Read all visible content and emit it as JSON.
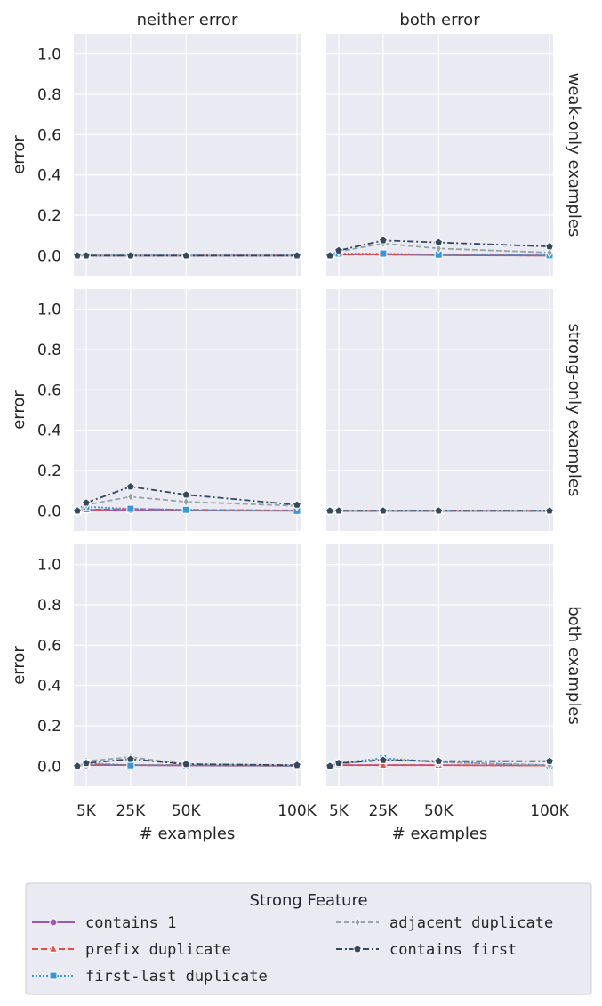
{
  "chart_data": {
    "type": "line",
    "row_titles": [
      "weak-only examples",
      "strong-only examples",
      "both examples"
    ],
    "col_titles": [
      "neither error",
      "both error"
    ],
    "xlabel": "# examples",
    "ylabel": "error",
    "x": [
      1000,
      5000,
      25000,
      50000,
      100000
    ],
    "x_ticks": [
      5000,
      25000,
      50000,
      100000
    ],
    "x_tick_labels": [
      "5K",
      "25K",
      "50K",
      "100K"
    ],
    "y_ticks": [
      0.0,
      0.2,
      0.4,
      0.6,
      0.8,
      1.0
    ],
    "y_tick_labels": [
      "0.0",
      "0.2",
      "0.4",
      "0.6",
      "0.8",
      "1.0"
    ],
    "ylim": [
      -0.1,
      1.1
    ],
    "grid": true,
    "legend": {
      "title": "Strong Feature",
      "placement": "bottom",
      "entries": [
        "contains 1",
        "prefix duplicate",
        "first-last duplicate",
        "adjacent duplicate",
        "contains first"
      ]
    },
    "series_styles": [
      {
        "name": "contains 1",
        "color": "#9b59b6",
        "dash": "",
        "marker": "circle"
      },
      {
        "name": "prefix duplicate",
        "color": "#e74c3c",
        "dash": "7,3",
        "marker": "triangle"
      },
      {
        "name": "first-last duplicate",
        "color": "#3498db",
        "dash": "2,2",
        "marker": "square"
      },
      {
        "name": "adjacent duplicate",
        "color": "#95a5a6",
        "dash": "6,3",
        "marker": "diamond"
      },
      {
        "name": "contains first",
        "color": "#34495e",
        "dash": "7,3,2,3",
        "marker": "pentagon"
      }
    ],
    "panels": [
      {
        "row": 0,
        "col": 0,
        "series": [
          {
            "name": "contains 1",
            "values": [
              0,
              0,
              0,
              0,
              0
            ]
          },
          {
            "name": "prefix duplicate",
            "values": [
              0,
              0,
              0,
              0,
              0
            ]
          },
          {
            "name": "first-last duplicate",
            "values": [
              0,
              0,
              0,
              0,
              0
            ]
          },
          {
            "name": "adjacent duplicate",
            "values": [
              0,
              0,
              0,
              0,
              0
            ]
          },
          {
            "name": "contains first",
            "values": [
              0,
              0,
              0,
              0,
              0
            ]
          }
        ]
      },
      {
        "row": 0,
        "col": 1,
        "series": [
          {
            "name": "contains 1",
            "values": [
              0,
              0.005,
              0.005,
              0.002,
              0.0
            ]
          },
          {
            "name": "prefix duplicate",
            "values": [
              0,
              0.005,
              0.005,
              0.003,
              0.0
            ]
          },
          {
            "name": "first-last duplicate",
            "values": [
              0,
              0.01,
              0.01,
              0.005,
              0.002
            ]
          },
          {
            "name": "adjacent duplicate",
            "values": [
              0,
              0.02,
              0.06,
              0.035,
              0.015
            ]
          },
          {
            "name": "contains first",
            "values": [
              0,
              0.025,
              0.075,
              0.065,
              0.045
            ]
          }
        ]
      },
      {
        "row": 1,
        "col": 0,
        "series": [
          {
            "name": "contains 1",
            "values": [
              0,
              0.005,
              0.003,
              0.002,
              0.0
            ]
          },
          {
            "name": "prefix duplicate",
            "values": [
              0,
              0.005,
              0.01,
              0.005,
              0.002
            ]
          },
          {
            "name": "first-last duplicate",
            "values": [
              0,
              0.02,
              0.01,
              0.005,
              0.0
            ]
          },
          {
            "name": "adjacent duplicate",
            "values": [
              0,
              0.03,
              0.07,
              0.045,
              0.025
            ]
          },
          {
            "name": "contains first",
            "values": [
              0,
              0.04,
              0.12,
              0.08,
              0.03
            ]
          }
        ]
      },
      {
        "row": 1,
        "col": 1,
        "series": [
          {
            "name": "contains 1",
            "values": [
              0,
              0,
              0,
              0,
              0
            ]
          },
          {
            "name": "prefix duplicate",
            "values": [
              0,
              0,
              0,
              0,
              0
            ]
          },
          {
            "name": "first-last duplicate",
            "values": [
              0,
              0,
              0,
              0,
              0
            ]
          },
          {
            "name": "adjacent duplicate",
            "values": [
              0,
              0,
              0,
              0,
              0
            ]
          },
          {
            "name": "contains first",
            "values": [
              0,
              0,
              0,
              0,
              0
            ]
          }
        ]
      },
      {
        "row": 2,
        "col": 0,
        "series": [
          {
            "name": "contains 1",
            "values": [
              0,
              0.005,
              0.005,
              0.003,
              0.002
            ]
          },
          {
            "name": "prefix duplicate",
            "values": [
              0,
              0.01,
              0.005,
              0.005,
              0.002
            ]
          },
          {
            "name": "first-last duplicate",
            "values": [
              0,
              0.015,
              0.005,
              0.005,
              0.002
            ]
          },
          {
            "name": "adjacent duplicate",
            "values": [
              0,
              0.025,
              0.045,
              0.01,
              0.005
            ]
          },
          {
            "name": "contains first",
            "values": [
              0,
              0.015,
              0.035,
              0.01,
              0.005
            ]
          }
        ]
      },
      {
        "row": 2,
        "col": 1,
        "series": [
          {
            "name": "contains 1",
            "values": [
              0,
              0.005,
              0.005,
              0.005,
              0.003
            ]
          },
          {
            "name": "prefix duplicate",
            "values": [
              0,
              0.005,
              0.005,
              0.005,
              0.003
            ]
          },
          {
            "name": "first-last duplicate",
            "values": [
              0,
              0.015,
              0.04,
              0.02,
              0.005
            ]
          },
          {
            "name": "adjacent duplicate",
            "values": [
              0,
              0.01,
              0.035,
              0.02,
              0.005
            ]
          },
          {
            "name": "contains first",
            "values": [
              0,
              0.015,
              0.03,
              0.025,
              0.025
            ]
          }
        ]
      }
    ]
  }
}
